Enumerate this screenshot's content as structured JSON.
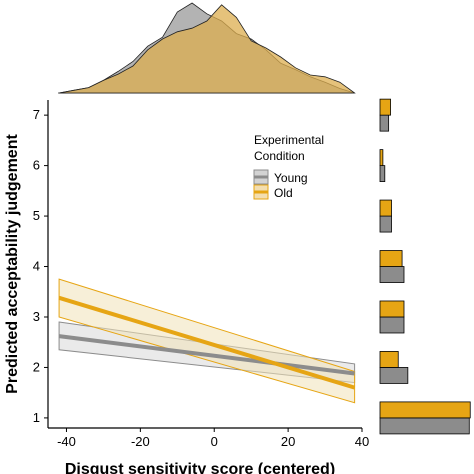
{
  "chart_data": [
    {
      "id": "main",
      "type": "line",
      "description_free": true,
      "xlabel": "Disgust sensitivity score (centered)",
      "ylabel": "Predicted acceptability judgement",
      "xlim": [
        -45,
        40
      ],
      "ylim": [
        0.8,
        7.3
      ],
      "x_ticks": [
        -40,
        -20,
        0,
        20,
        40
      ],
      "x_tick_labels": [
        "-40",
        "-20",
        "0",
        "20",
        "40"
      ],
      "y_ticks": [
        1,
        2,
        3,
        4,
        5,
        6,
        7
      ],
      "y_tick_labels": [
        "1",
        "2",
        "3",
        "4",
        "5",
        "6",
        "7"
      ],
      "grid": false,
      "legend": {
        "title_lines": [
          "Experimental",
          "Condition"
        ],
        "placement": "top-right",
        "entries": [
          "Young",
          "Old"
        ]
      },
      "series": [
        {
          "name": "Young",
          "color": "#8c8c8c",
          "x": [
            -42,
            38
          ],
          "y": [
            2.62,
            1.88
          ],
          "lower": [
            2.35,
            1.7
          ],
          "upper": [
            2.9,
            2.07
          ]
        },
        {
          "name": "Old",
          "color": "#e6a514",
          "x": [
            -42,
            38
          ],
          "y": [
            3.38,
            1.6
          ],
          "lower": [
            3.0,
            1.3
          ],
          "upper": [
            3.75,
            1.92
          ]
        }
      ]
    },
    {
      "id": "top-density",
      "type": "area",
      "series": [
        {
          "name": "Young",
          "color": "#999999",
          "x": [
            -42,
            -38,
            -34,
            -30,
            -26,
            -22,
            -18,
            -14,
            -10,
            -6,
            -2,
            2,
            6,
            10,
            14,
            18,
            22,
            26,
            30,
            34,
            38
          ],
          "y": [
            0.0,
            0.03,
            0.06,
            0.14,
            0.24,
            0.35,
            0.52,
            0.62,
            0.9,
            1.0,
            0.88,
            0.8,
            0.66,
            0.6,
            0.48,
            0.33,
            0.26,
            0.18,
            0.12,
            0.05,
            0.0
          ]
        },
        {
          "name": "Old",
          "color": "#dcae4f",
          "x": [
            -42,
            -38,
            -34,
            -30,
            -26,
            -22,
            -18,
            -14,
            -10,
            -6,
            -2,
            2,
            6,
            10,
            14,
            18,
            22,
            26,
            30,
            34,
            38
          ],
          "y": [
            0.0,
            0.03,
            0.06,
            0.14,
            0.21,
            0.3,
            0.48,
            0.6,
            0.68,
            0.72,
            0.8,
            0.98,
            0.84,
            0.58,
            0.5,
            0.4,
            0.28,
            0.2,
            0.18,
            0.12,
            0.0
          ]
        }
      ]
    },
    {
      "id": "right-histogram",
      "type": "bar",
      "orientation": "horizontal",
      "categories": [
        "1",
        "2",
        "3",
        "4",
        "5",
        "6",
        "7"
      ],
      "series": [
        {
          "name": "Young",
          "color": "#8c8c8c",
          "values": [
            0.93,
            0.29,
            0.25,
            0.25,
            0.12,
            0.05,
            0.09
          ]
        },
        {
          "name": "Old",
          "color": "#e6a514",
          "values": [
            0.94,
            0.19,
            0.25,
            0.23,
            0.12,
            0.03,
            0.11
          ]
        }
      ]
    }
  ]
}
